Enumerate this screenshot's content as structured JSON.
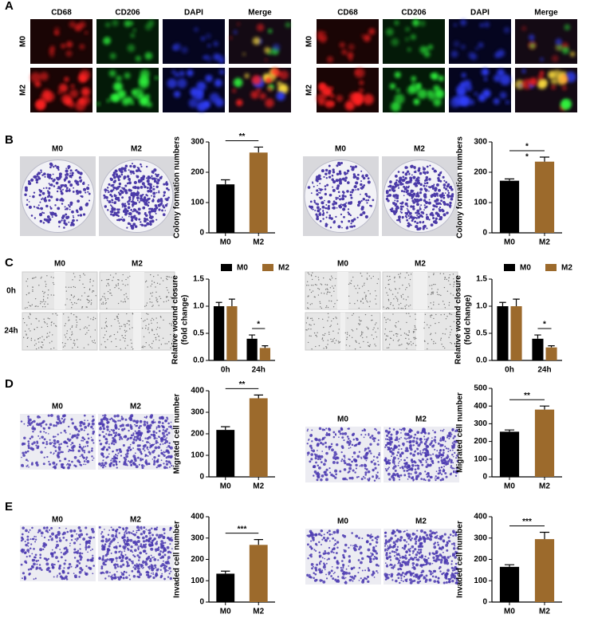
{
  "panel_labels": [
    "A",
    "B",
    "C",
    "D",
    "E"
  ],
  "panel_a": {
    "groups": [
      {
        "columns": [
          "CD68",
          "CD206",
          "DAPI",
          "Merge"
        ],
        "rows": [
          "M0",
          "M2"
        ]
      },
      {
        "columns": [
          "CD68",
          "CD206",
          "DAPI",
          "Merge"
        ],
        "rows": [
          "M0",
          "M2"
        ]
      }
    ]
  },
  "panel_b": {
    "groups": [
      {
        "columns": [
          "M0",
          "M2"
        ]
      },
      {
        "columns": [
          "M0",
          "M2"
        ]
      }
    ]
  },
  "panel_c": {
    "groups": [
      {
        "columns": [
          "M0",
          "M2"
        ],
        "rows": [
          "0h",
          "24h"
        ]
      },
      {
        "columns": [
          "M0",
          "M2"
        ]
      }
    ]
  },
  "panel_d": {
    "groups": [
      {
        "columns": [
          "M0",
          "M2"
        ]
      },
      {
        "columns": [
          "M0",
          "M2"
        ]
      }
    ]
  },
  "panel_e": {
    "groups": [
      {
        "columns": [
          "M0",
          "M2"
        ]
      },
      {
        "columns": [
          "M0",
          "M2"
        ]
      }
    ]
  },
  "chart_data": [
    {
      "type": "bar",
      "y_label": [
        "Colony formation numbers"
      ],
      "categories": [
        "M0",
        "M2"
      ],
      "values": [
        160,
        265
      ],
      "errors": [
        15,
        18
      ],
      "colors": [
        "#000000",
        "#9c6a2c"
      ],
      "ylim": [
        0,
        300
      ],
      "yticks": [
        0,
        100,
        200,
        300
      ],
      "annotations": [
        "**"
      ]
    },
    {
      "type": "bar",
      "y_label": [
        "Colony formation numbers"
      ],
      "categories": [
        "M0",
        "M2"
      ],
      "values": [
        172,
        235
      ],
      "errors": [
        6,
        15
      ],
      "colors": [
        "#000000",
        "#9c6a2c"
      ],
      "ylim": [
        0,
        300
      ],
      "yticks": [
        0,
        100,
        200,
        300
      ],
      "annotations": [
        "*",
        "*"
      ]
    },
    {
      "type": "grouped_bar",
      "y_label": [
        "Relative wound closure",
        "(fold change)"
      ],
      "categories": [
        "0h",
        "24h"
      ],
      "series": [
        {
          "name": "M0",
          "color": "#000000",
          "values": [
            1.0,
            0.4
          ],
          "errors": [
            0.07,
            0.07
          ]
        },
        {
          "name": "M2",
          "color": "#9c6a2c",
          "values": [
            1.0,
            0.23
          ],
          "errors": [
            0.13,
            0.04
          ]
        }
      ],
      "ylim": [
        0,
        1.5
      ],
      "yticks": [
        {
          "value": 0,
          "label": "0.0"
        },
        0.5,
        {
          "value": 1,
          "label": "1.0"
        },
        1.5
      ],
      "annotations": [
        "*"
      ]
    },
    {
      "type": "grouped_bar",
      "y_label": [
        "Relative wound closure",
        "(fold change)"
      ],
      "categories": [
        "0h",
        "24h"
      ],
      "series": [
        {
          "name": "M0",
          "color": "#000000",
          "values": [
            1.0,
            0.4
          ],
          "errors": [
            0.07,
            0.07
          ]
        },
        {
          "name": "M2",
          "color": "#9c6a2c",
          "values": [
            1.0,
            0.24
          ],
          "errors": [
            0.13,
            0.03
          ]
        }
      ],
      "ylim": [
        0,
        1.5
      ],
      "yticks": [
        {
          "value": 0,
          "label": "0.0"
        },
        0.5,
        {
          "value": 1,
          "label": "1.0"
        },
        1.5
      ],
      "annotations": [
        "*"
      ]
    },
    {
      "type": "bar",
      "y_label": [
        "Migrated cell number"
      ],
      "categories": [
        "M0",
        "M2"
      ],
      "values": [
        218,
        365
      ],
      "errors": [
        15,
        15
      ],
      "colors": [
        "#000000",
        "#9c6a2c"
      ],
      "ylim": [
        0,
        400
      ],
      "yticks": [
        0,
        100,
        200,
        300,
        400
      ],
      "annotations": [
        "**"
      ]
    },
    {
      "type": "bar",
      "y_label": [
        "Migrated cell number"
      ],
      "categories": [
        "M0",
        "M2"
      ],
      "values": [
        255,
        380
      ],
      "errors": [
        10,
        20
      ],
      "colors": [
        "#000000",
        "#9c6a2c"
      ],
      "ylim": [
        0,
        500
      ],
      "yticks": [
        0,
        100,
        200,
        300,
        400,
        500
      ],
      "annotations": [
        "**"
      ]
    },
    {
      "type": "bar",
      "y_label": [
        "Invaded cell number"
      ],
      "categories": [
        "M0",
        "M2"
      ],
      "values": [
        133,
        268
      ],
      "errors": [
        12,
        25
      ],
      "colors": [
        "#000000",
        "#9c6a2c"
      ],
      "ylim": [
        0,
        400
      ],
      "yticks": [
        0,
        100,
        200,
        300,
        400
      ],
      "annotations": [
        "***"
      ]
    },
    {
      "type": "bar",
      "y_label": [
        "Invaded cell number"
      ],
      "categories": [
        "M0",
        "M2"
      ],
      "values": [
        165,
        295
      ],
      "errors": [
        10,
        32
      ],
      "colors": [
        "#000000",
        "#9c6a2c"
      ],
      "ylim": [
        0,
        400
      ],
      "yticks": [
        0,
        100,
        200,
        300,
        400
      ],
      "annotations": [
        "***"
      ]
    }
  ]
}
